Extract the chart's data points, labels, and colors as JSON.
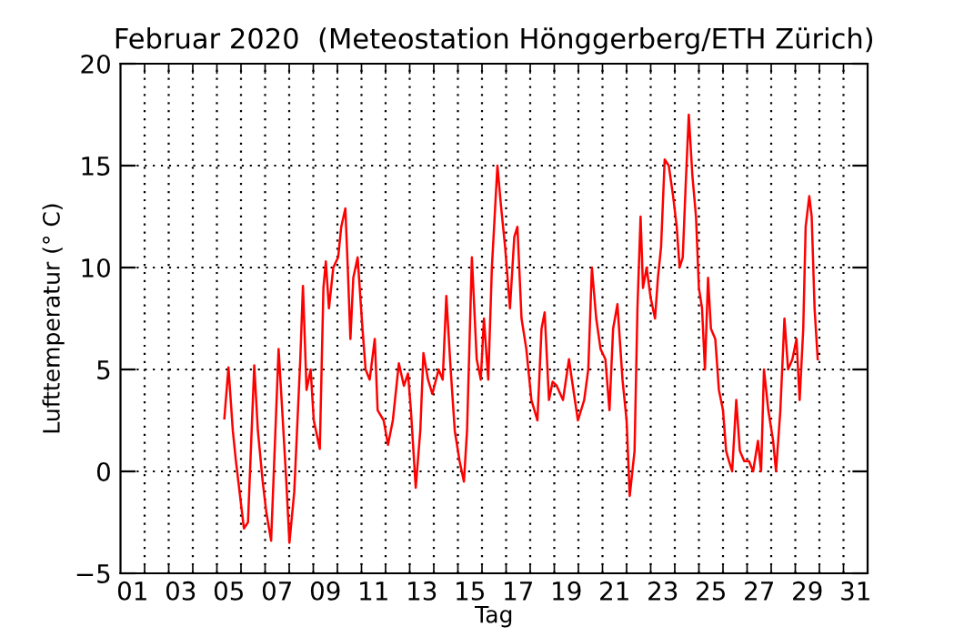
{
  "chart_data": {
    "type": "line",
    "title": "Februar 2020  (Meteostation Hönggerberg/ETH Zürich)",
    "xlabel": "Tag",
    "ylabel": "Lufttemperatur (° C)",
    "xlim": [
      0,
      31
    ],
    "ylim": [
      -5,
      20
    ],
    "yticks": [
      -5,
      0,
      5,
      10,
      15,
      20
    ],
    "xticks": [
      {
        "value": 0.5,
        "label": "01"
      },
      {
        "value": 1,
        "label": null
      },
      {
        "value": 2,
        "label": null
      },
      {
        "value": 2.5,
        "label": "03"
      },
      {
        "value": 3,
        "label": null
      },
      {
        "value": 4,
        "label": null
      },
      {
        "value": 4.5,
        "label": "05"
      },
      {
        "value": 5,
        "label": null
      },
      {
        "value": 6,
        "label": null
      },
      {
        "value": 6.5,
        "label": "07"
      },
      {
        "value": 7,
        "label": null
      },
      {
        "value": 8,
        "label": null
      },
      {
        "value": 8.5,
        "label": "09"
      },
      {
        "value": 9,
        "label": null
      },
      {
        "value": 10,
        "label": null
      },
      {
        "value": 10.5,
        "label": "11"
      },
      {
        "value": 11,
        "label": null
      },
      {
        "value": 12,
        "label": null
      },
      {
        "value": 12.5,
        "label": "13"
      },
      {
        "value": 13,
        "label": null
      },
      {
        "value": 14,
        "label": null
      },
      {
        "value": 14.5,
        "label": "15"
      },
      {
        "value": 15,
        "label": null
      },
      {
        "value": 16,
        "label": null
      },
      {
        "value": 16.5,
        "label": "17"
      },
      {
        "value": 17,
        "label": null
      },
      {
        "value": 18,
        "label": null
      },
      {
        "value": 18.5,
        "label": "19"
      },
      {
        "value": 19,
        "label": null
      },
      {
        "value": 20,
        "label": null
      },
      {
        "value": 20.5,
        "label": "21"
      },
      {
        "value": 21,
        "label": null
      },
      {
        "value": 22,
        "label": null
      },
      {
        "value": 22.5,
        "label": "23"
      },
      {
        "value": 23,
        "label": null
      },
      {
        "value": 24,
        "label": null
      },
      {
        "value": 24.5,
        "label": "25"
      },
      {
        "value": 25,
        "label": null
      },
      {
        "value": 26,
        "label": null
      },
      {
        "value": 26.5,
        "label": "27"
      },
      {
        "value": 27,
        "label": null
      },
      {
        "value": 28,
        "label": null
      },
      {
        "value": 28.5,
        "label": "29"
      },
      {
        "value": 29,
        "label": null
      },
      {
        "value": 30,
        "label": null
      },
      {
        "value": 30.5,
        "label": "31"
      }
    ],
    "grid": true,
    "legend": false,
    "marker": "none",
    "line_style": "solid",
    "series": [
      {
        "color": "#ff0000",
        "x": [
          4.31,
          4.48,
          4.66,
          4.79,
          5.12,
          5.29,
          5.55,
          5.7,
          5.9,
          6.05,
          6.25,
          6.56,
          6.71,
          6.88,
          7.01,
          7.21,
          7.46,
          7.57,
          7.72,
          7.89,
          8.02,
          8.27,
          8.42,
          8.52,
          8.65,
          8.83,
          9.03,
          9.16,
          9.33,
          9.43,
          9.54,
          9.66,
          9.84,
          10.04,
          10.17,
          10.34,
          10.55,
          10.67,
          10.92,
          11.1,
          11.3,
          11.55,
          11.76,
          11.93,
          12.05,
          12.25,
          12.44,
          12.57,
          12.76,
          12.94,
          13.2,
          13.37,
          13.52,
          13.7,
          13.87,
          14.07,
          14.25,
          14.38,
          14.58,
          14.78,
          14.95,
          15.08,
          15.26,
          15.41,
          15.64,
          15.79,
          15.96,
          16.16,
          16.34,
          16.47,
          16.64,
          16.84,
          17.05,
          17.3,
          17.47,
          17.6,
          17.78,
          17.93,
          18.1,
          18.36,
          18.61,
          18.73,
          18.98,
          19.24,
          19.41,
          19.56,
          19.74,
          19.92,
          20.12,
          20.29,
          20.44,
          20.62,
          20.83,
          21.0,
          21.13,
          21.33,
          21.45,
          21.58,
          21.68,
          21.83,
          22.0,
          22.18,
          22.3,
          22.43,
          22.58,
          22.75,
          22.93,
          23.08,
          23.2,
          23.33,
          23.45,
          23.58,
          23.73,
          23.88,
          24.0,
          24.13,
          24.25,
          24.38,
          24.5,
          24.68,
          24.83,
          25.0,
          25.13,
          25.25,
          25.38,
          25.55,
          25.7,
          25.88,
          26.08,
          26.25,
          26.45,
          26.58,
          26.7,
          26.88,
          27.08,
          27.2,
          27.38,
          27.55,
          27.7,
          27.88,
          28.05,
          28.18,
          28.33,
          28.43,
          28.58,
          28.68,
          28.8,
          28.93
        ],
        "values": [
          2.6,
          5.1,
          2.0,
          0.5,
          -2.8,
          -2.5,
          5.2,
          2.0,
          -0.5,
          -2.0,
          -3.4,
          6.0,
          3.0,
          -0.5,
          -3.5,
          -1.0,
          5.5,
          9.1,
          4.0,
          5.0,
          2.5,
          1.1,
          9.0,
          10.3,
          8.0,
          10.0,
          10.5,
          12.0,
          12.9,
          10.0,
          6.5,
          9.5,
          10.5,
          7.0,
          5.0,
          4.5,
          6.5,
          3.0,
          2.5,
          1.3,
          2.5,
          5.3,
          4.2,
          4.8,
          3.0,
          -0.8,
          2.0,
          5.8,
          4.5,
          3.8,
          5.0,
          4.5,
          8.6,
          5.0,
          2.0,
          0.5,
          -0.5,
          2.0,
          10.5,
          5.5,
          4.5,
          7.5,
          4.5,
          10.0,
          15.0,
          13.0,
          11.0,
          8.0,
          11.5,
          12.0,
          7.5,
          6.0,
          3.5,
          2.5,
          7.0,
          7.8,
          3.5,
          4.4,
          4.2,
          3.5,
          5.5,
          4.5,
          2.5,
          3.5,
          5.0,
          10.0,
          7.5,
          6.0,
          5.5,
          3.0,
          7.0,
          8.2,
          4.5,
          2.5,
          -1.2,
          1.0,
          8.0,
          12.5,
          9.0,
          10.0,
          8.5,
          7.5,
          9.5,
          11.0,
          15.3,
          15.0,
          13.5,
          12.0,
          10.0,
          10.5,
          14.0,
          17.5,
          14.5,
          12.5,
          9.0,
          8.0,
          5.0,
          9.5,
          7.0,
          6.5,
          4.0,
          3.0,
          1.0,
          0.5,
          0.0,
          3.5,
          1.0,
          0.5,
          0.5,
          0.0,
          1.5,
          0.0,
          5.0,
          3.0,
          1.5,
          0.0,
          3.0,
          7.5,
          5.0,
          5.5,
          6.5,
          3.5,
          7.0,
          12.0,
          13.5,
          12.5,
          8.0,
          5.5
        ]
      }
    ]
  }
}
